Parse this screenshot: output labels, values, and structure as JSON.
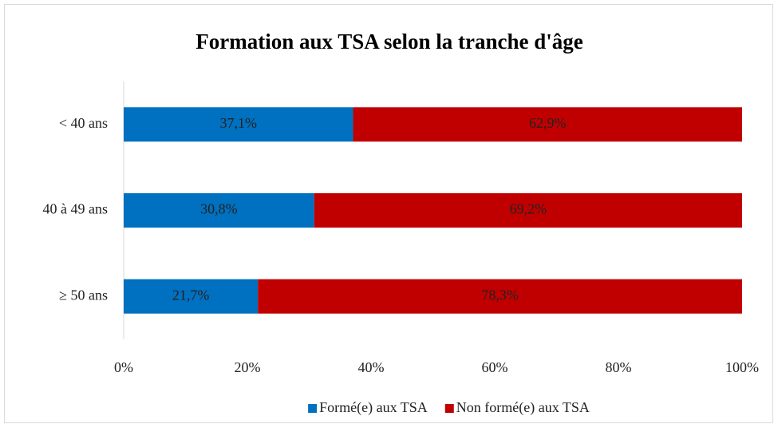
{
  "chart_data": {
    "type": "bar",
    "orientation": "horizontal",
    "stacked": true,
    "title": "Formation aux TSA selon la tranche d'âge",
    "categories": [
      "< 40 ans",
      "40 à 49 ans",
      "≥ 50 ans"
    ],
    "series": [
      {
        "name": "Formé(e) aux TSA",
        "color": "#0070c0",
        "values": [
          37.1,
          30.8,
          21.7
        ],
        "value_labels": [
          "37,1%",
          "30,8%",
          "21,7%"
        ]
      },
      {
        "name": "Non formé(e) aux TSA",
        "color": "#c00000",
        "values": [
          62.9,
          69.2,
          78.3
        ],
        "value_labels": [
          "62,9%",
          "69,2%",
          "78,3%"
        ]
      }
    ],
    "xlim": [
      0,
      100
    ],
    "xticks": [
      {
        "value": 0,
        "label": "0%"
      },
      {
        "value": 20,
        "label": "20%"
      },
      {
        "value": 40,
        "label": "40%"
      },
      {
        "value": 60,
        "label": "60%"
      },
      {
        "value": 80,
        "label": "80%"
      },
      {
        "value": 100,
        "label": "100%"
      }
    ],
    "grid": false,
    "legend": "bottom"
  }
}
